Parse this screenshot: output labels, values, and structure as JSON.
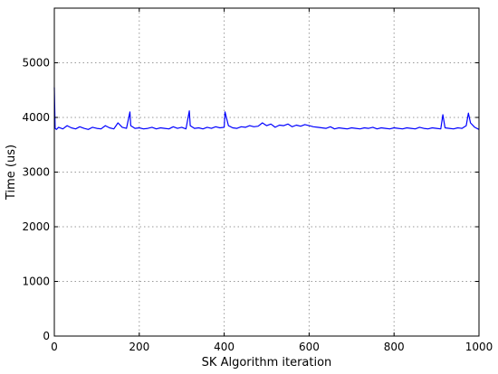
{
  "chart_data": {
    "type": "line",
    "title": "",
    "xlabel": "SK Algorithm iteration",
    "ylabel": "Time (us)",
    "xlim": [
      0,
      1000
    ],
    "ylim": [
      0,
      6000
    ],
    "xticks": [
      0,
      200,
      400,
      600,
      800,
      1000
    ],
    "yticks": [
      0,
      1000,
      2000,
      3000,
      4000,
      5000
    ],
    "xtick_labels": [
      "0",
      "200",
      "400",
      "600",
      "800",
      "1000"
    ],
    "ytick_labels": [
      "0",
      "1000",
      "2000",
      "3000",
      "4000",
      "5000"
    ],
    "grid": true,
    "legend": "none",
    "series": [
      {
        "color": "#0000ff",
        "x": [
          0,
          2,
          5,
          10,
          20,
          30,
          40,
          50,
          60,
          70,
          80,
          90,
          100,
          110,
          120,
          130,
          140,
          150,
          160,
          170,
          178,
          180,
          190,
          200,
          210,
          220,
          230,
          240,
          250,
          260,
          270,
          280,
          290,
          300,
          310,
          318,
          320,
          330,
          340,
          350,
          360,
          370,
          380,
          390,
          400,
          402,
          410,
          420,
          430,
          440,
          450,
          460,
          470,
          480,
          490,
          500,
          510,
          520,
          530,
          540,
          550,
          560,
          570,
          580,
          590,
          600,
          610,
          620,
          630,
          640,
          650,
          660,
          670,
          680,
          690,
          700,
          710,
          720,
          730,
          740,
          750,
          760,
          770,
          780,
          790,
          800,
          810,
          820,
          830,
          840,
          850,
          860,
          870,
          880,
          890,
          900,
          910,
          915,
          920,
          930,
          940,
          950,
          960,
          970,
          975,
          980,
          990,
          1000
        ],
        "y": [
          4550,
          3800,
          3780,
          3820,
          3790,
          3850,
          3810,
          3790,
          3830,
          3800,
          3780,
          3820,
          3800,
          3790,
          3850,
          3810,
          3790,
          3900,
          3820,
          3800,
          4100,
          3850,
          3800,
          3810,
          3790,
          3800,
          3820,
          3790,
          3810,
          3800,
          3790,
          3830,
          3800,
          3820,
          3790,
          4120,
          3850,
          3800,
          3810,
          3790,
          3820,
          3800,
          3830,
          3810,
          3820,
          4100,
          3850,
          3810,
          3800,
          3830,
          3820,
          3850,
          3830,
          3840,
          3900,
          3850,
          3880,
          3820,
          3860,
          3850,
          3880,
          3830,
          3860,
          3840,
          3870,
          3850,
          3830,
          3820,
          3810,
          3800,
          3830,
          3790,
          3810,
          3800,
          3790,
          3810,
          3800,
          3790,
          3810,
          3800,
          3820,
          3790,
          3810,
          3800,
          3790,
          3810,
          3800,
          3790,
          3810,
          3800,
          3790,
          3820,
          3800,
          3790,
          3810,
          3800,
          3790,
          4050,
          3810,
          3800,
          3790,
          3810,
          3800,
          3850,
          4080,
          3900,
          3820,
          3780
        ]
      }
    ]
  }
}
